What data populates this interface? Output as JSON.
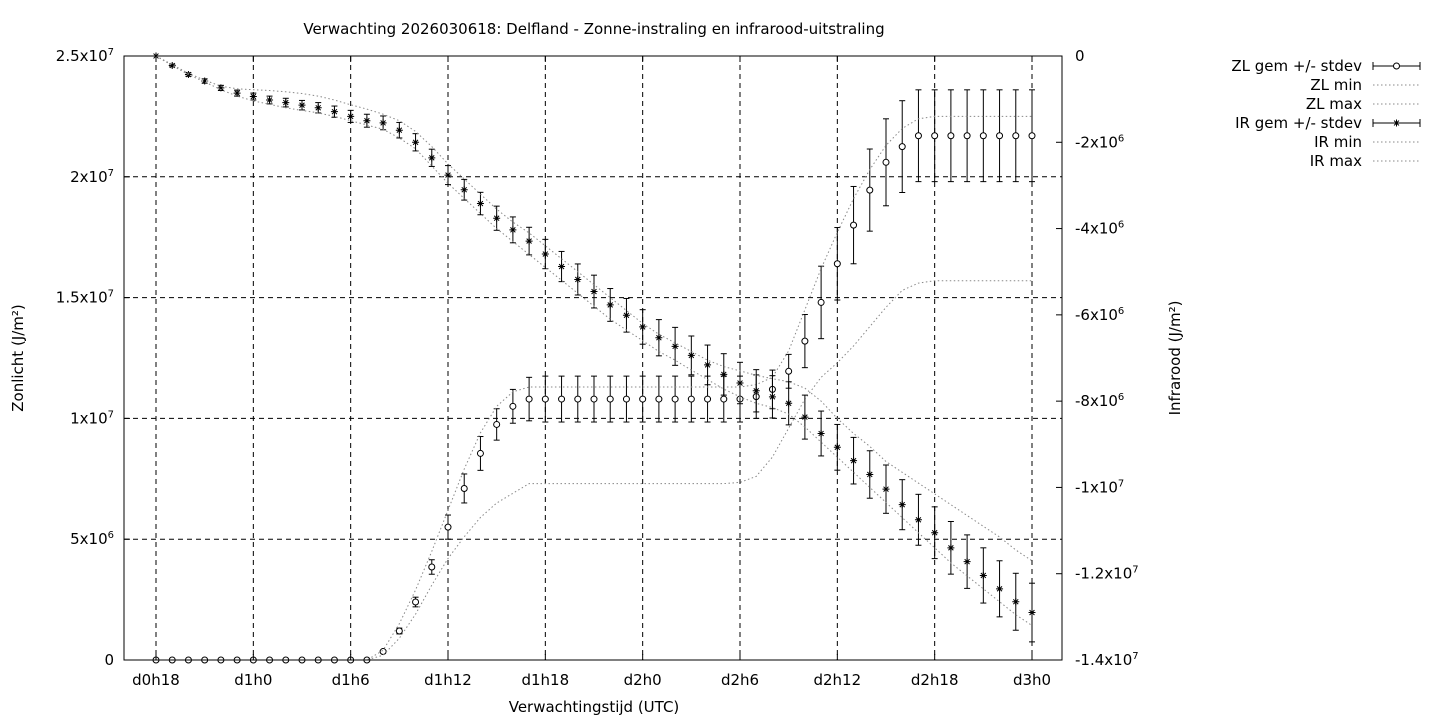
{
  "chart_data": {
    "type": "line",
    "title": "Verwachting 2026030618: Delfland - Zonne-instraling en infrarood-uitstraling",
    "xlabel": "Verwachtingstijd (UTC)",
    "ylabel": "Zonlicht (J/m²)",
    "y2label": "Infrarood (J/m²)",
    "grid": true,
    "legend_position": "outside-right",
    "x_hours": [
      18,
      19,
      20,
      21,
      22,
      23,
      24,
      25,
      26,
      27,
      28,
      29,
      30,
      31,
      32,
      33,
      34,
      35,
      36,
      37,
      38,
      39,
      40,
      41,
      42,
      43,
      44,
      45,
      46,
      47,
      48,
      49,
      50,
      51,
      52,
      53,
      54,
      55,
      56,
      57,
      58,
      59,
      60,
      61,
      62,
      63,
      64,
      65,
      66,
      67,
      68,
      69,
      70,
      71,
      72
    ],
    "x_ticks": [
      "d0h18",
      "d1h0",
      "d1h6",
      "d1h12",
      "d1h18",
      "d2h0",
      "d2h6",
      "d2h12",
      "d2h18",
      "d3h0"
    ],
    "y_ticks": [
      "0",
      "5x10^6",
      "1x10^7",
      "1.5x10^7",
      "2x10^7",
      "2.5x10^7"
    ],
    "y2_ticks": [
      "0",
      "-2x10^6",
      "-4x10^6",
      "-6x10^6",
      "-8x10^6",
      "-1x10^7",
      "-1.2x10^7",
      "-1.4x10^7"
    ],
    "ylim": [
      0,
      25000000
    ],
    "y2lim": [
      -14000000,
      0
    ],
    "series": [
      {
        "name": "ZL gem +/- stdev",
        "axis": "y",
        "marker": "circle",
        "errorbars": true,
        "values": [
          0,
          0,
          0,
          0,
          0,
          0,
          0,
          0,
          0,
          0,
          0,
          0,
          0,
          0,
          350000,
          1200000,
          2400000,
          3850000,
          5500000,
          7100000,
          8550000,
          9750000,
          10500000,
          10800000,
          10800000,
          10800000,
          10800000,
          10800000,
          10800000,
          10800000,
          10800000,
          10800000,
          10800000,
          10800000,
          10800000,
          10800000,
          10800000,
          10900000,
          11200000,
          11950000,
          13200000,
          14800000,
          16400000,
          18000000,
          19450000,
          20600000,
          21250000,
          21700000,
          21700000,
          21700000,
          21700000,
          21700000,
          21700000,
          21700000,
          21700000
        ],
        "stdev": [
          0,
          0,
          0,
          0,
          0,
          0,
          0,
          0,
          0,
          0,
          0,
          0,
          0,
          0,
          50000,
          120000,
          200000,
          300000,
          500000,
          600000,
          700000,
          650000,
          700000,
          900000,
          950000,
          950000,
          950000,
          950000,
          950000,
          950000,
          950000,
          950000,
          950000,
          950000,
          950000,
          950000,
          950000,
          900000,
          800000,
          700000,
          1100000,
          1500000,
          1500000,
          1600000,
          1700000,
          1800000,
          1900000,
          1900000,
          1900000,
          1900000,
          1900000,
          1900000,
          1900000,
          1900000,
          1900000
        ]
      },
      {
        "name": "ZL min",
        "axis": "y",
        "style": "dotted",
        "values": [
          0,
          0,
          0,
          0,
          0,
          0,
          0,
          0,
          0,
          0,
          0,
          0,
          0,
          0,
          200000,
          900000,
          1900000,
          3100000,
          4200000,
          5100000,
          5900000,
          6500000,
          6900000,
          7300000,
          7300000,
          7300000,
          7300000,
          7300000,
          7300000,
          7300000,
          7300000,
          7300000,
          7300000,
          7300000,
          7300000,
          7300000,
          7350000,
          7600000,
          8400000,
          9600000,
          10800000,
          11700000,
          12300000,
          13000000,
          13800000,
          14600000,
          15300000,
          15600000,
          15700000,
          15700000,
          15700000,
          15700000,
          15700000,
          15700000,
          15700000
        ]
      },
      {
        "name": "ZL max",
        "axis": "y",
        "style": "dotted",
        "values": [
          0,
          0,
          0,
          0,
          0,
          0,
          0,
          0,
          0,
          0,
          0,
          0,
          0,
          0,
          400000,
          1500000,
          2900000,
          4500000,
          6200000,
          7900000,
          9400000,
          10500000,
          11100000,
          11300000,
          11300000,
          11300000,
          11300000,
          11300000,
          11300000,
          11300000,
          11300000,
          11300000,
          11300000,
          11300000,
          11300000,
          11300000,
          11300000,
          11400000,
          11700000,
          12800000,
          14500000,
          16200000,
          17700000,
          19100000,
          20300000,
          21300000,
          22000000,
          22400000,
          22500000,
          22500000,
          22500000,
          22500000,
          22500000,
          22500000,
          22500000
        ]
      },
      {
        "name": "IR gem +/- stdev",
        "axis": "y2",
        "marker": "star",
        "errorbars": true,
        "values": [
          0,
          -220000,
          -430000,
          -580000,
          -740000,
          -860000,
          -940000,
          -1020000,
          -1080000,
          -1140000,
          -1200000,
          -1290000,
          -1400000,
          -1500000,
          -1550000,
          -1720000,
          -2000000,
          -2360000,
          -2760000,
          -3100000,
          -3420000,
          -3760000,
          -4030000,
          -4290000,
          -4590000,
          -4880000,
          -5180000,
          -5460000,
          -5770000,
          -6010000,
          -6280000,
          -6530000,
          -6730000,
          -6940000,
          -7160000,
          -7380000,
          -7580000,
          -7760000,
          -7900000,
          -8050000,
          -8370000,
          -8750000,
          -9070000,
          -9380000,
          -9700000,
          -10040000,
          -10400000,
          -10750000,
          -11050000,
          -11400000,
          -11720000,
          -12040000,
          -12350000,
          -12650000,
          -12900000
        ],
        "stdev": [
          0,
          30000,
          40000,
          50000,
          60000,
          70000,
          80000,
          90000,
          100000,
          110000,
          120000,
          130000,
          140000,
          150000,
          160000,
          180000,
          200000,
          200000,
          220000,
          240000,
          260000,
          280000,
          300000,
          320000,
          340000,
          350000,
          360000,
          380000,
          380000,
          390000,
          400000,
          420000,
          440000,
          450000,
          460000,
          480000,
          480000,
          490000,
          490000,
          500000,
          510000,
          520000,
          530000,
          540000,
          550000,
          560000,
          580000,
          590000,
          600000,
          610000,
          620000,
          640000,
          650000,
          660000,
          680000
        ]
      },
      {
        "name": "IR min",
        "axis": "y2",
        "style": "dotted",
        "values": [
          0,
          -220000,
          -430000,
          -600000,
          -780000,
          -930000,
          -1040000,
          -1120000,
          -1200000,
          -1260000,
          -1320000,
          -1400000,
          -1500000,
          -1600000,
          -1700000,
          -1900000,
          -2150000,
          -2550000,
          -2950000,
          -3300000,
          -3650000,
          -4000000,
          -4300000,
          -4600000,
          -4900000,
          -5200000,
          -5500000,
          -5800000,
          -6100000,
          -6350000,
          -6600000,
          -6850000,
          -7050000,
          -7280000,
          -7500000,
          -7720000,
          -7900000,
          -8050000,
          -8150000,
          -8300000,
          -8600000,
          -8950000,
          -9300000,
          -9650000,
          -10000000,
          -10350000,
          -10700000,
          -11050000,
          -11400000,
          -11750000,
          -12050000,
          -12350000,
          -12650000,
          -12950000,
          -13200000
        ]
      },
      {
        "name": "IR max",
        "axis": "y2",
        "style": "dotted",
        "values": [
          0,
          -200000,
          -400000,
          -560000,
          -700000,
          -760000,
          -780000,
          -800000,
          -830000,
          -870000,
          -930000,
          -1020000,
          -1130000,
          -1230000,
          -1350000,
          -1500000,
          -1750000,
          -2100000,
          -2500000,
          -2850000,
          -3200000,
          -3550000,
          -3850000,
          -4100000,
          -4400000,
          -4700000,
          -5000000,
          -5300000,
          -5600000,
          -5900000,
          -6200000,
          -6450000,
          -6650000,
          -6850000,
          -7050000,
          -7200000,
          -7300000,
          -7400000,
          -7480000,
          -7550000,
          -7700000,
          -8000000,
          -8400000,
          -8750000,
          -9050000,
          -9400000,
          -9650000,
          -9900000,
          -10150000,
          -10400000,
          -10650000,
          -10900000,
          -11150000,
          -11450000,
          -11700000
        ]
      }
    ]
  }
}
